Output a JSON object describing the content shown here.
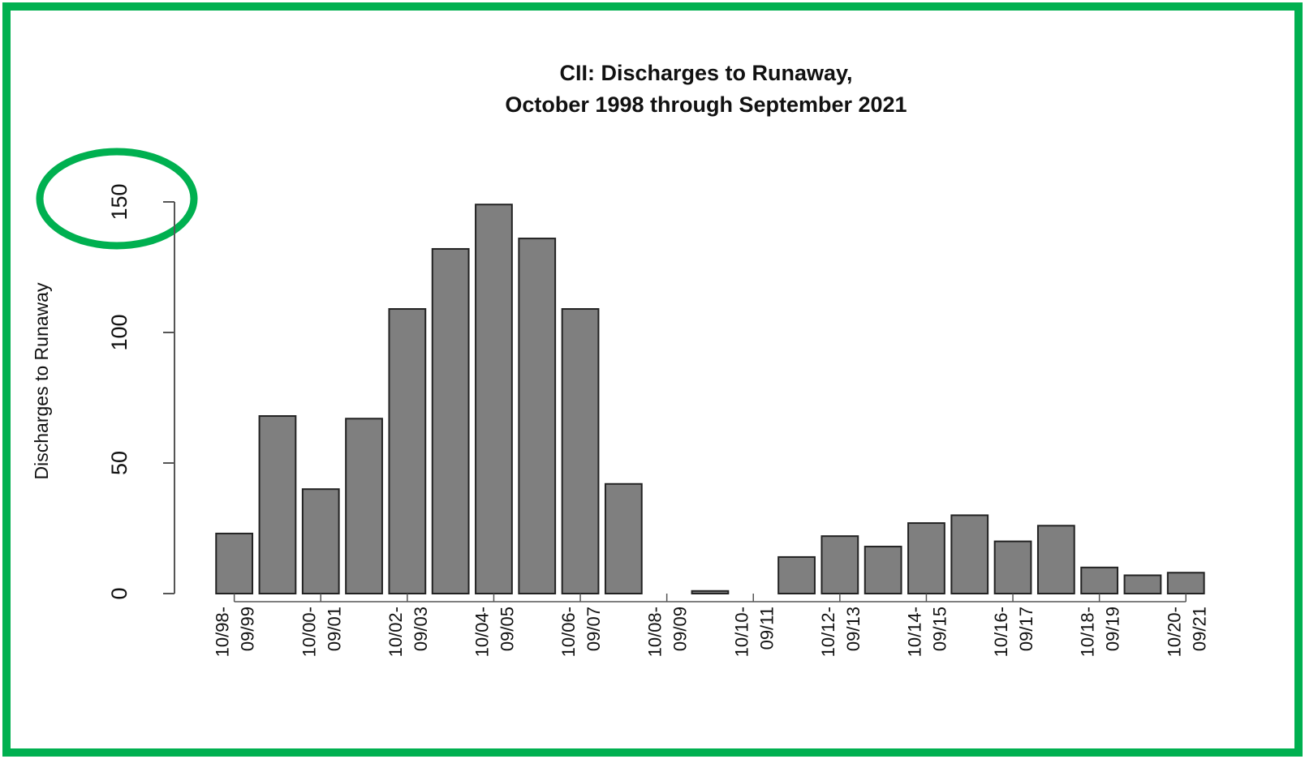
{
  "chart_data": {
    "type": "bar",
    "title": "CII: Discharges to Runaway,",
    "subtitle": "October 1998 through September 2021",
    "y_label": "Discharges to Runaway",
    "categories": [
      "10/98-09/99",
      null,
      "10/00-09/01",
      null,
      "10/02-09/03",
      null,
      "10/04-09/05",
      null,
      "10/06-09/07",
      null,
      "10/08-09/09",
      null,
      "10/10-09/11",
      null,
      "10/12-09/13",
      null,
      "10/14-09/15",
      null,
      "10/16-09/17",
      null,
      "10/18-09/19",
      null,
      "10/20-09/21"
    ],
    "values": [
      23,
      68,
      40,
      67,
      109,
      132,
      149,
      136,
      109,
      42,
      0,
      1,
      0,
      14,
      22,
      18,
      27,
      30,
      20,
      26,
      10,
      7,
      8
    ],
    "color": "#7f7f7f",
    "ylim": [
      0,
      150
    ],
    "yticks": [
      0,
      50,
      100,
      150
    ],
    "grid": false
  }
}
